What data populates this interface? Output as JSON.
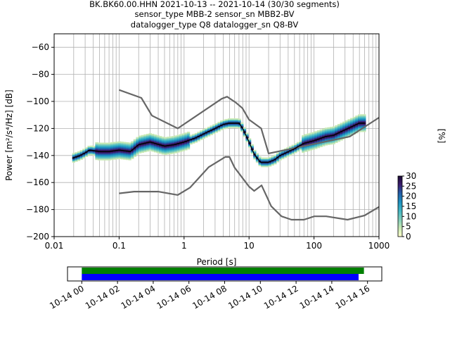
{
  "chart_data": {
    "type": "heatmap",
    "title_lines": [
      "BK.BK60.00.HHN   2021-10-13 -- 2021-10-14  (30/30 segments)",
      "sensor_type MBB-2 sensor_sn MBB2-BV",
      "datalogger_type Q8 datalogger_sn Q8-BV"
    ],
    "xlabel": "Period [s]",
    "ylabel": "Power [m²/s⁴/Hz] [dB]",
    "x_scale": "log",
    "xlim": [
      0.01,
      1000
    ],
    "ylim": [
      -200,
      -50
    ],
    "x_tick_labels": [
      {
        "value": 0.01,
        "label": "0.01"
      },
      {
        "value": 0.1,
        "label": "0.1"
      },
      {
        "value": 1,
        "label": "1"
      },
      {
        "value": 10,
        "label": "10"
      },
      {
        "value": 100,
        "label": "100"
      },
      {
        "value": 1000,
        "label": "1000"
      }
    ],
    "y_ticks": [
      -60,
      -80,
      -100,
      -120,
      -140,
      -160,
      -180,
      -200
    ],
    "grid": true,
    "colorbar": {
      "label": "[%]",
      "range": [
        0,
        30
      ],
      "ticks": [
        0,
        5,
        10,
        15,
        20,
        25,
        30
      ],
      "colors": [
        "#ffffcc",
        "#c7e9b4",
        "#7fcdbb",
        "#41b6c4",
        "#1d91c0",
        "#225ea8",
        "#3b1c6e",
        "#1a0933"
      ]
    },
    "noise_model_high": {
      "x": [
        0.1,
        0.22,
        0.32,
        0.8,
        3.8,
        4.6,
        6.3,
        7.9,
        10,
        15.4,
        20,
        354.8,
        1000
      ],
      "y": [
        -91.5,
        -97.4,
        -110.5,
        -120,
        -98,
        -96.5,
        -101,
        -105,
        -113.5,
        -120,
        -138.5,
        -126,
        -112
      ]
    },
    "noise_model_low": {
      "x": [
        0.1,
        0.17,
        0.4,
        0.8,
        1.24,
        2.4,
        4.3,
        5,
        6,
        10,
        12,
        15.6,
        21.9,
        31.6,
        45,
        70,
        101,
        154,
        328,
        600,
        1000
      ],
      "y": [
        -168,
        -166.7,
        -166.7,
        -169.2,
        -163.7,
        -148.6,
        -141.1,
        -141.1,
        -149,
        -163,
        -166.2,
        -162.1,
        -177.5,
        -185,
        -187.5,
        -187.5,
        -185,
        -185,
        -187.5,
        -184.4,
        -178
      ]
    },
    "median": {
      "x": [
        0.019,
        0.025,
        0.03,
        0.035,
        0.05,
        0.07,
        0.1,
        0.15,
        0.2,
        0.3,
        0.5,
        0.7,
        1,
        1.5,
        2,
        3,
        4,
        5,
        7,
        8,
        10,
        12,
        15,
        20,
        25,
        30,
        50,
        70,
        100,
        150,
        200,
        300,
        500,
        600
      ],
      "y": [
        -142,
        -140,
        -138,
        -136,
        -137,
        -137,
        -136,
        -137,
        -132,
        -130,
        -133,
        -132,
        -130,
        -127,
        -124,
        -120,
        -117,
        -116,
        -116,
        -120,
        -130,
        -139,
        -145,
        -145,
        -143,
        -140,
        -135,
        -131,
        -129,
        -126,
        -125,
        -121,
        -116,
        -116
      ]
    },
    "timeline": {
      "tick_labels": [
        "10-14 00",
        "10-14 02",
        "10-14 04",
        "10-14 06",
        "10-14 08",
        "10-14 10",
        "10-14 12",
        "10-14 14",
        "10-14 16"
      ],
      "tick_hours": [
        0,
        2,
        4,
        6,
        8,
        10,
        12,
        14,
        16
      ],
      "xlim_hours": [
        -0.8,
        16.8
      ],
      "bars": [
        {
          "color": "#008000",
          "start_hour": 0,
          "end_hour": 15.8
        },
        {
          "color": "#0000ff",
          "start_hour": 0,
          "end_hour": 15.5
        }
      ]
    }
  }
}
